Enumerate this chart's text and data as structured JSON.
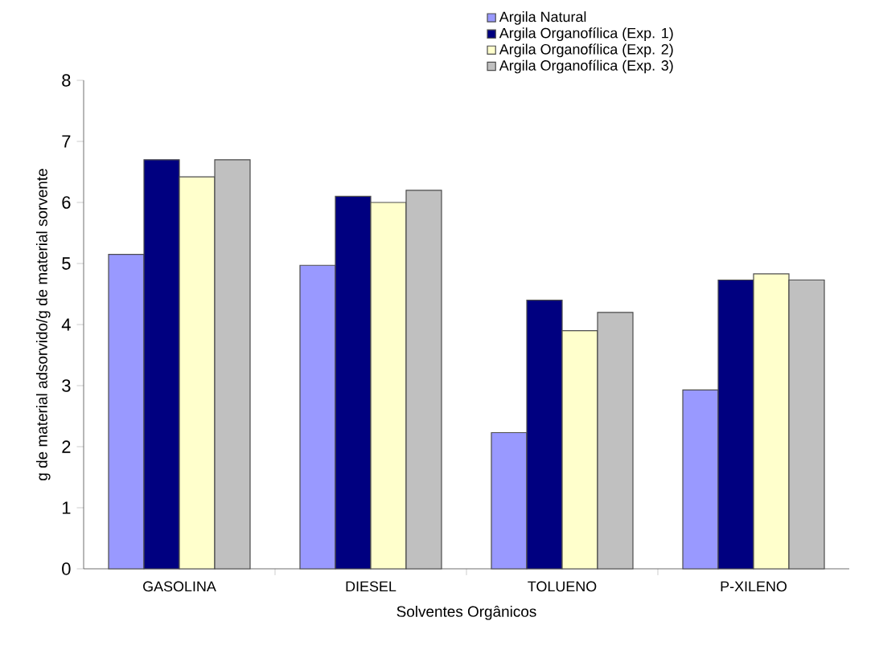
{
  "chart_data": {
    "type": "bar",
    "xlabel": "Solventes Orgânicos",
    "ylabel": "g de material adsorvido/g de material sorvente",
    "categories": [
      "GASOLINA",
      "DIESEL",
      "TOLUENO",
      "P-XILENO"
    ],
    "series": [
      {
        "name": "Argila Natural",
        "color": "#9999ff",
        "values": [
          5.15,
          4.97,
          2.23,
          2.93
        ]
      },
      {
        "name": "Argila Organofílica (Exp. 1)",
        "color": "#000080",
        "values": [
          6.7,
          6.1,
          4.4,
          4.73
        ]
      },
      {
        "name": "Argila Organofílica (Exp. 2)",
        "color": "#ffffcc",
        "values": [
          6.42,
          6.0,
          3.9,
          4.83
        ]
      },
      {
        "name": "Argila Organofílica (Exp. 3)",
        "color": "#c0c0c0",
        "values": [
          6.7,
          6.2,
          4.2,
          4.73
        ]
      }
    ],
    "ylim": [
      0,
      8
    ],
    "yticks": [
      0,
      1,
      2,
      3,
      4,
      5,
      6,
      7,
      8
    ],
    "grid": false,
    "legend": "top right"
  }
}
